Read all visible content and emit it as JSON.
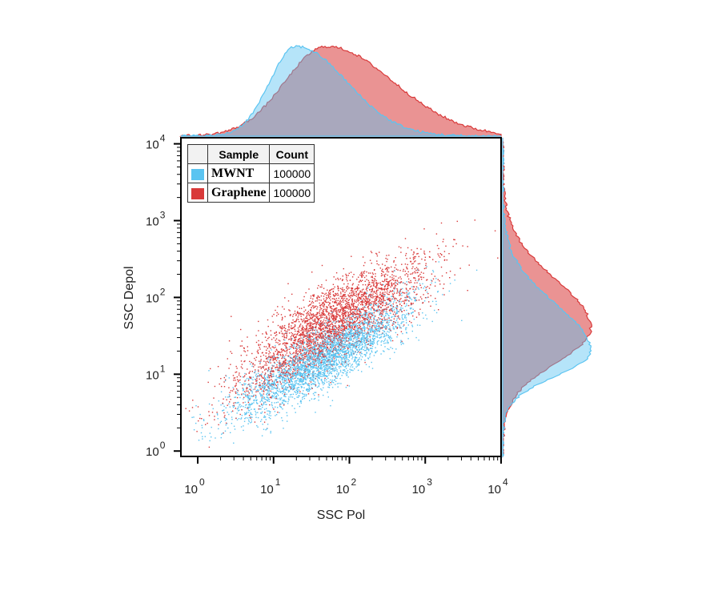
{
  "chart_data": {
    "type": "scatter",
    "subtype": "flow-cytometry dot plot with marginal histograms",
    "xlabel": "SSC Pol",
    "ylabel": "SSC Depol",
    "x_scale": "log",
    "y_scale": "log",
    "xlim": [
      0.6,
      10000
    ],
    "ylim": [
      0.85,
      12000
    ],
    "x_ticks": [
      {
        "value": 1,
        "base": "10",
        "exp": "0"
      },
      {
        "value": 10,
        "base": "10",
        "exp": "1"
      },
      {
        "value": 100,
        "base": "10",
        "exp": "2"
      },
      {
        "value": 1000,
        "base": "10",
        "exp": "3"
      },
      {
        "value": 10000,
        "base": "10",
        "exp": "4"
      }
    ],
    "y_ticks": [
      {
        "value": 1,
        "base": "10",
        "exp": "0"
      },
      {
        "value": 10,
        "base": "10",
        "exp": "1"
      },
      {
        "value": 100,
        "base": "10",
        "exp": "2"
      },
      {
        "value": 1000,
        "base": "10",
        "exp": "3"
      },
      {
        "value": 10000,
        "base": "10",
        "exp": "4"
      }
    ],
    "legend": {
      "position": "top-left",
      "headers": [
        "Sample",
        "Count"
      ],
      "rows": [
        {
          "name": "MWNT",
          "count": "100000",
          "color": "#5bc4f1"
        },
        {
          "name": "Graphene",
          "count": "100000",
          "color": "#d93a3a"
        }
      ]
    },
    "series": [
      {
        "name": "MWNT",
        "color": "#5bc4f1",
        "count": 100000,
        "distribution": "log-normal cloud along diagonal",
        "log10_x_center": 1.65,
        "log10_x_spread": 0.55,
        "log10_y_center": 1.2,
        "log10_y_spread": 0.32,
        "x_histogram_peak_log10": 1.3,
        "y_histogram_peak_log10": 1.3
      },
      {
        "name": "Graphene",
        "color": "#d93a3a",
        "count": 100000,
        "distribution": "log-normal cloud along diagonal",
        "log10_x_center": 1.75,
        "log10_x_spread": 0.6,
        "log10_y_center": 1.7,
        "log10_y_spread": 0.45,
        "x_histogram_peak_log10": 1.7,
        "y_histogram_peak_log10": 1.6
      }
    ],
    "grid": false
  }
}
